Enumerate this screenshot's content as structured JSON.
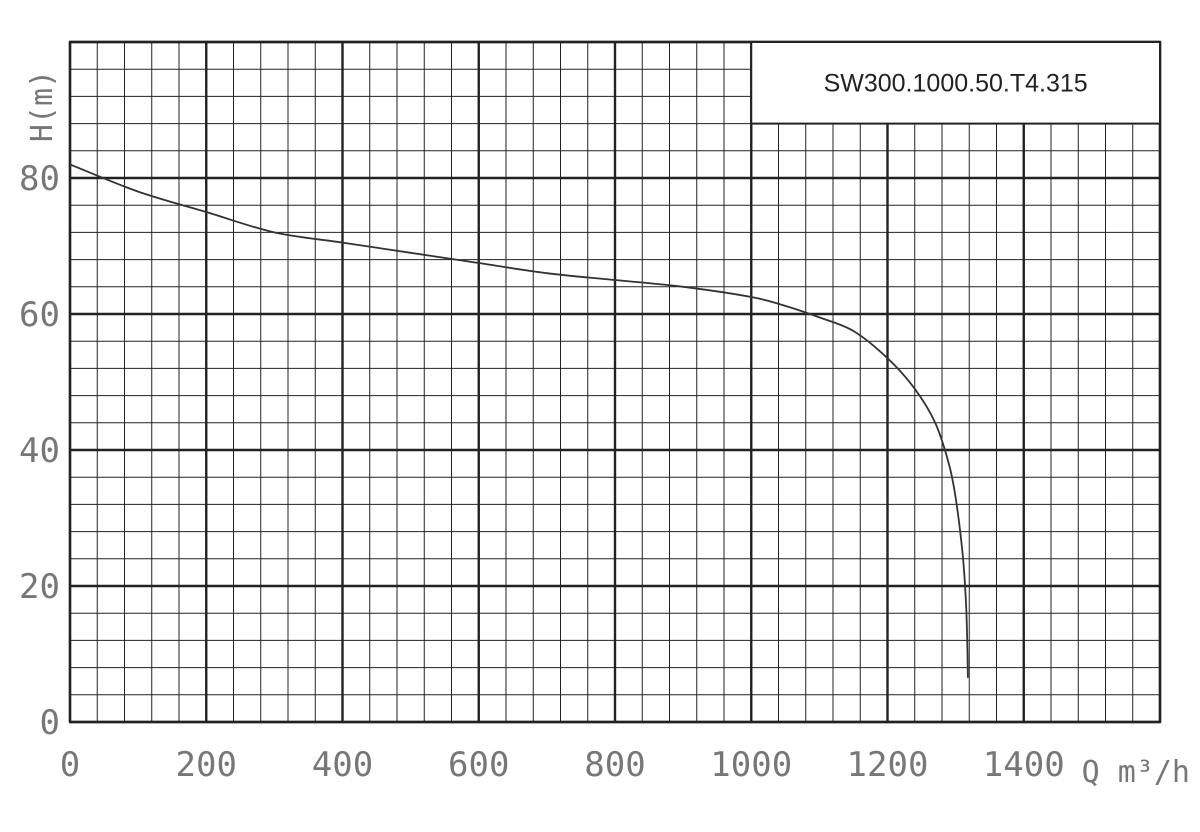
{
  "chart_data": {
    "type": "line",
    "title": "SW300.1000.50.T4.315",
    "xlabel": "Q m³/h",
    "ylabel": "H(m)",
    "xlim": [
      0,
      1600
    ],
    "ylim": [
      0,
      100
    ],
    "x_ticks": [
      "0",
      "200",
      "400",
      "600",
      "800",
      "1000",
      "1200",
      "1400"
    ],
    "y_ticks": [
      "0",
      "20",
      "40",
      "60",
      "80"
    ],
    "grid": true,
    "series": [
      {
        "name": "",
        "x": [
          0,
          100,
          200,
          300,
          400,
          500,
          600,
          700,
          800,
          900,
          1000,
          1050,
          1100,
          1150,
          1200,
          1240,
          1270,
          1290,
          1300,
          1310,
          1315,
          1317,
          1318
        ],
        "y": [
          82,
          78,
          75,
          72,
          70.5,
          69,
          67.5,
          66,
          65,
          64,
          62.5,
          61.2,
          59.5,
          57.5,
          53.5,
          49,
          44,
          38,
          33,
          25,
          18,
          12,
          6.5
        ]
      }
    ],
    "colors": {
      "grid": "#222222",
      "curve": "#333333",
      "ticks": "#777777",
      "background": "#ffffff"
    }
  }
}
